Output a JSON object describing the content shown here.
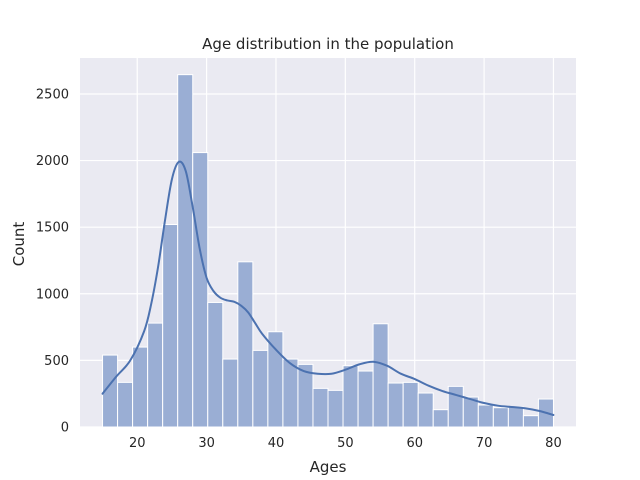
{
  "chart_data": {
    "type": "bar",
    "title": "Age distribution in the population",
    "xlabel": "Ages",
    "ylabel": "Count",
    "xlim": [
      11.75,
      83.25
    ],
    "ylim": [
      0,
      2770
    ],
    "grid": true,
    "background_color": "#EAEAF2",
    "bar_color": "#9AAED4",
    "bar_edge_color": "#FFFFFF",
    "line_color": "#4C72B0",
    "x_ticks": [
      20,
      30,
      40,
      50,
      60,
      70,
      80
    ],
    "y_ticks": [
      0,
      500,
      1000,
      1500,
      2000,
      2500
    ],
    "bins": {
      "start": 15,
      "width": 2.1667,
      "counts": [
        540,
        335,
        600,
        780,
        1520,
        2645,
        2060,
        935,
        510,
        1240,
        575,
        715,
        510,
        470,
        290,
        275,
        460,
        420,
        775,
        330,
        335,
        255,
        130,
        305,
        225,
        165,
        145,
        150,
        85,
        210
      ]
    },
    "kde": {
      "x": [
        15,
        17,
        19,
        21,
        22,
        23,
        24,
        25,
        26,
        27,
        28,
        29,
        30,
        31,
        32,
        33,
        34,
        35,
        36,
        37,
        38,
        40,
        42,
        44,
        46,
        48,
        50,
        52,
        54,
        56,
        58,
        60,
        62,
        64,
        66,
        68,
        70,
        72,
        74,
        76,
        78,
        80
      ],
      "y": [
        250,
        380,
        500,
        720,
        920,
        1200,
        1550,
        1860,
        1990,
        1920,
        1650,
        1340,
        1120,
        1020,
        970,
        950,
        940,
        910,
        860,
        780,
        700,
        580,
        480,
        420,
        400,
        400,
        430,
        470,
        490,
        460,
        400,
        360,
        310,
        270,
        240,
        210,
        180,
        160,
        150,
        140,
        120,
        90
      ]
    }
  }
}
